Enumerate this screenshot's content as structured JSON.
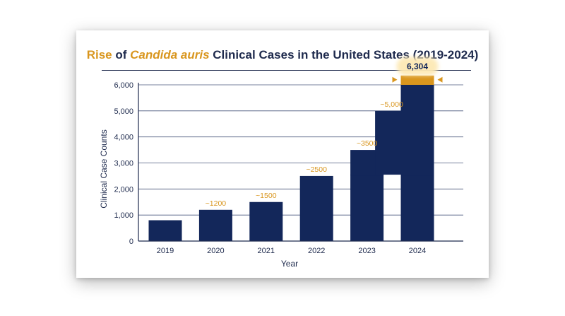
{
  "title": {
    "part1": "Rise",
    "part2": " of ",
    "part3": "Candida auris",
    "part4": " Clinical Cases in the United States (2019-2024)"
  },
  "colors": {
    "bar": "#13275a",
    "accent": "#d9961e",
    "highlight_glow": "#fde9b5",
    "grid": "#2a3a66",
    "title": "#1e2a4d"
  },
  "chart_data": {
    "type": "bar",
    "categories": [
      "2019",
      "2020",
      "2021",
      "2022",
      "2023",
      "2024"
    ],
    "values": [
      800,
      1200,
      1500,
      2500,
      3500,
      6304
    ],
    "upper_segments": [
      null,
      null,
      null,
      null,
      [
        2550,
        3500
      ],
      [
        2550,
        6000
      ]
    ],
    "offset_segments": [
      null,
      null,
      null,
      null,
      [
        2550,
        5000
      ],
      null
    ],
    "top_cap": {
      "category": "2024",
      "range": [
        6000,
        6304
      ]
    },
    "data_labels": [
      "",
      "~1200",
      "~1500",
      "~2500",
      "~3500",
      "6,304"
    ],
    "offset_label": "~5,000",
    "highlight_label": "6,304",
    "xlabel": "Year",
    "ylabel": "Clinical Case Counts",
    "ylim": [
      0,
      6700
    ],
    "yticks": [
      0,
      1000,
      2000,
      3000,
      4000,
      5000,
      6000
    ],
    "ytick_labels": [
      "0",
      "1,000",
      "2,000",
      "3,000",
      "4,000",
      "5,000",
      "6,000"
    ],
    "grid": true
  }
}
